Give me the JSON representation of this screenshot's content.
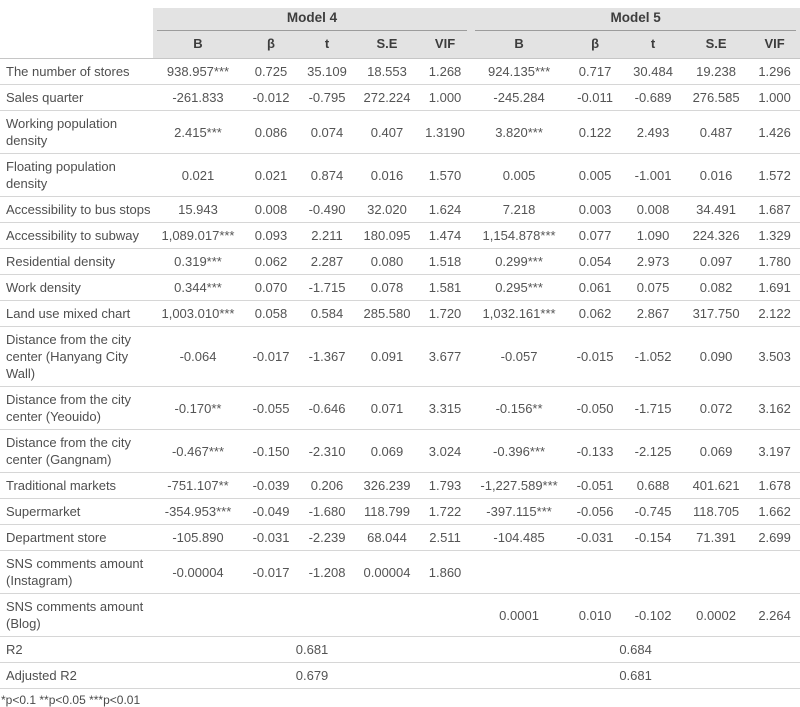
{
  "table": {
    "group_headers": [
      "Model 4",
      "Model 5"
    ],
    "col_headers": [
      "B",
      "β",
      "t",
      "S.E",
      "VIF"
    ],
    "rows": [
      {
        "label": "The number of stores",
        "m4": [
          "938.957***",
          "0.725",
          "35.109",
          "18.553",
          "1.268"
        ],
        "m5": [
          "924.135***",
          "0.717",
          "30.484",
          "19.238",
          "1.296"
        ]
      },
      {
        "label": "Sales quarter",
        "m4": [
          "-261.833",
          "-0.012",
          "-0.795",
          "272.224",
          "1.000"
        ],
        "m5": [
          "-245.284",
          "-0.011",
          "-0.689",
          "276.585",
          "1.000"
        ]
      },
      {
        "label": "Working population density",
        "m4": [
          "2.415***",
          "0.086",
          "0.074",
          "0.407",
          "1.3190"
        ],
        "m5": [
          "3.820***",
          "0.122",
          "2.493",
          "0.487",
          "1.426"
        ]
      },
      {
        "label": "Floating population density",
        "m4": [
          "0.021",
          "0.021",
          "0.874",
          "0.016",
          "1.570"
        ],
        "m5": [
          "0.005",
          "0.005",
          "-1.001",
          "0.016",
          "1.572"
        ]
      },
      {
        "label": "Accessibility to bus stops",
        "m4": [
          "15.943",
          "0.008",
          "-0.490",
          "32.020",
          "1.624"
        ],
        "m5": [
          "7.218",
          "0.003",
          "0.008",
          "34.491",
          "1.687"
        ]
      },
      {
        "label": "Accessibility to subway",
        "m4": [
          "1,089.017***",
          "0.093",
          "2.211",
          "180.095",
          "1.474"
        ],
        "m5": [
          "1,154.878***",
          "0.077",
          "1.090",
          "224.326",
          "1.329"
        ]
      },
      {
        "label": "Residential density",
        "m4": [
          "0.319***",
          "0.062",
          "2.287",
          "0.080",
          "1.518"
        ],
        "m5": [
          "0.299***",
          "0.054",
          "2.973",
          "0.097",
          "1.780"
        ]
      },
      {
        "label": "Work density",
        "m4": [
          "0.344***",
          "0.070",
          "-1.715",
          "0.078",
          "1.581"
        ],
        "m5": [
          "0.295***",
          "0.061",
          "0.075",
          "0.082",
          "1.691"
        ]
      },
      {
        "label": "Land use mixed chart",
        "m4": [
          "1,003.010***",
          "0.058",
          "0.584",
          "285.580",
          "1.720"
        ],
        "m5": [
          "1,032.161***",
          "0.062",
          "2.867",
          "317.750",
          "2.122"
        ]
      },
      {
        "label": "Distance from the city center (Hanyang City Wall)",
        "m4": [
          "-0.064",
          "-0.017",
          "-1.367",
          "0.091",
          "3.677"
        ],
        "m5": [
          "-0.057",
          "-0.015",
          "-1.052",
          "0.090",
          "3.503"
        ]
      },
      {
        "label": "Distance from the city center (Yeouido)",
        "m4": [
          "-0.170**",
          "-0.055",
          "-0.646",
          "0.071",
          "3.315"
        ],
        "m5": [
          "-0.156**",
          "-0.050",
          "-1.715",
          "0.072",
          "3.162"
        ]
      },
      {
        "label": "Distance from the city center (Gangnam)",
        "m4": [
          "-0.467***",
          "-0.150",
          "-2.310",
          "0.069",
          "3.024"
        ],
        "m5": [
          "-0.396***",
          "-0.133",
          "-2.125",
          "0.069",
          "3.197"
        ]
      },
      {
        "label": "Traditional markets",
        "m4": [
          "-751.107**",
          "-0.039",
          "0.206",
          "326.239",
          "1.793"
        ],
        "m5": [
          "-1,227.589***",
          "-0.051",
          "0.688",
          "401.621",
          "1.678"
        ]
      },
      {
        "label": "Supermarket",
        "m4": [
          "-354.953***",
          "-0.049",
          "-1.680",
          "118.799",
          "1.722"
        ],
        "m5": [
          "-397.115***",
          "-0.056",
          "-0.745",
          "118.705",
          "1.662"
        ]
      },
      {
        "label": "Department store",
        "m4": [
          "-105.890",
          "-0.031",
          "-2.239",
          "68.044",
          "2.511"
        ],
        "m5": [
          "-104.485",
          "-0.031",
          "-0.154",
          "71.391",
          "2.699"
        ]
      },
      {
        "label": "SNS comments amount (Instagram)",
        "m4": [
          "-0.00004",
          "-0.017",
          "-1.208",
          "0.00004",
          "1.860"
        ],
        "m5": [
          "",
          "",
          "",
          "",
          ""
        ]
      },
      {
        "label": "SNS comments amount (Blog)",
        "m4": [
          "",
          "",
          "",
          "",
          ""
        ],
        "m5": [
          "0.0001",
          "0.010",
          "-0.102",
          "0.0002",
          "2.264"
        ]
      }
    ],
    "summary_rows": [
      {
        "label": "R2",
        "m4": "0.681",
        "m5": "0.684"
      },
      {
        "label": "Adjusted R2",
        "m4": "0.679",
        "m5": "0.681"
      }
    ],
    "footnote": "*p<0.1 **p<0.05 ***p<0.01"
  }
}
